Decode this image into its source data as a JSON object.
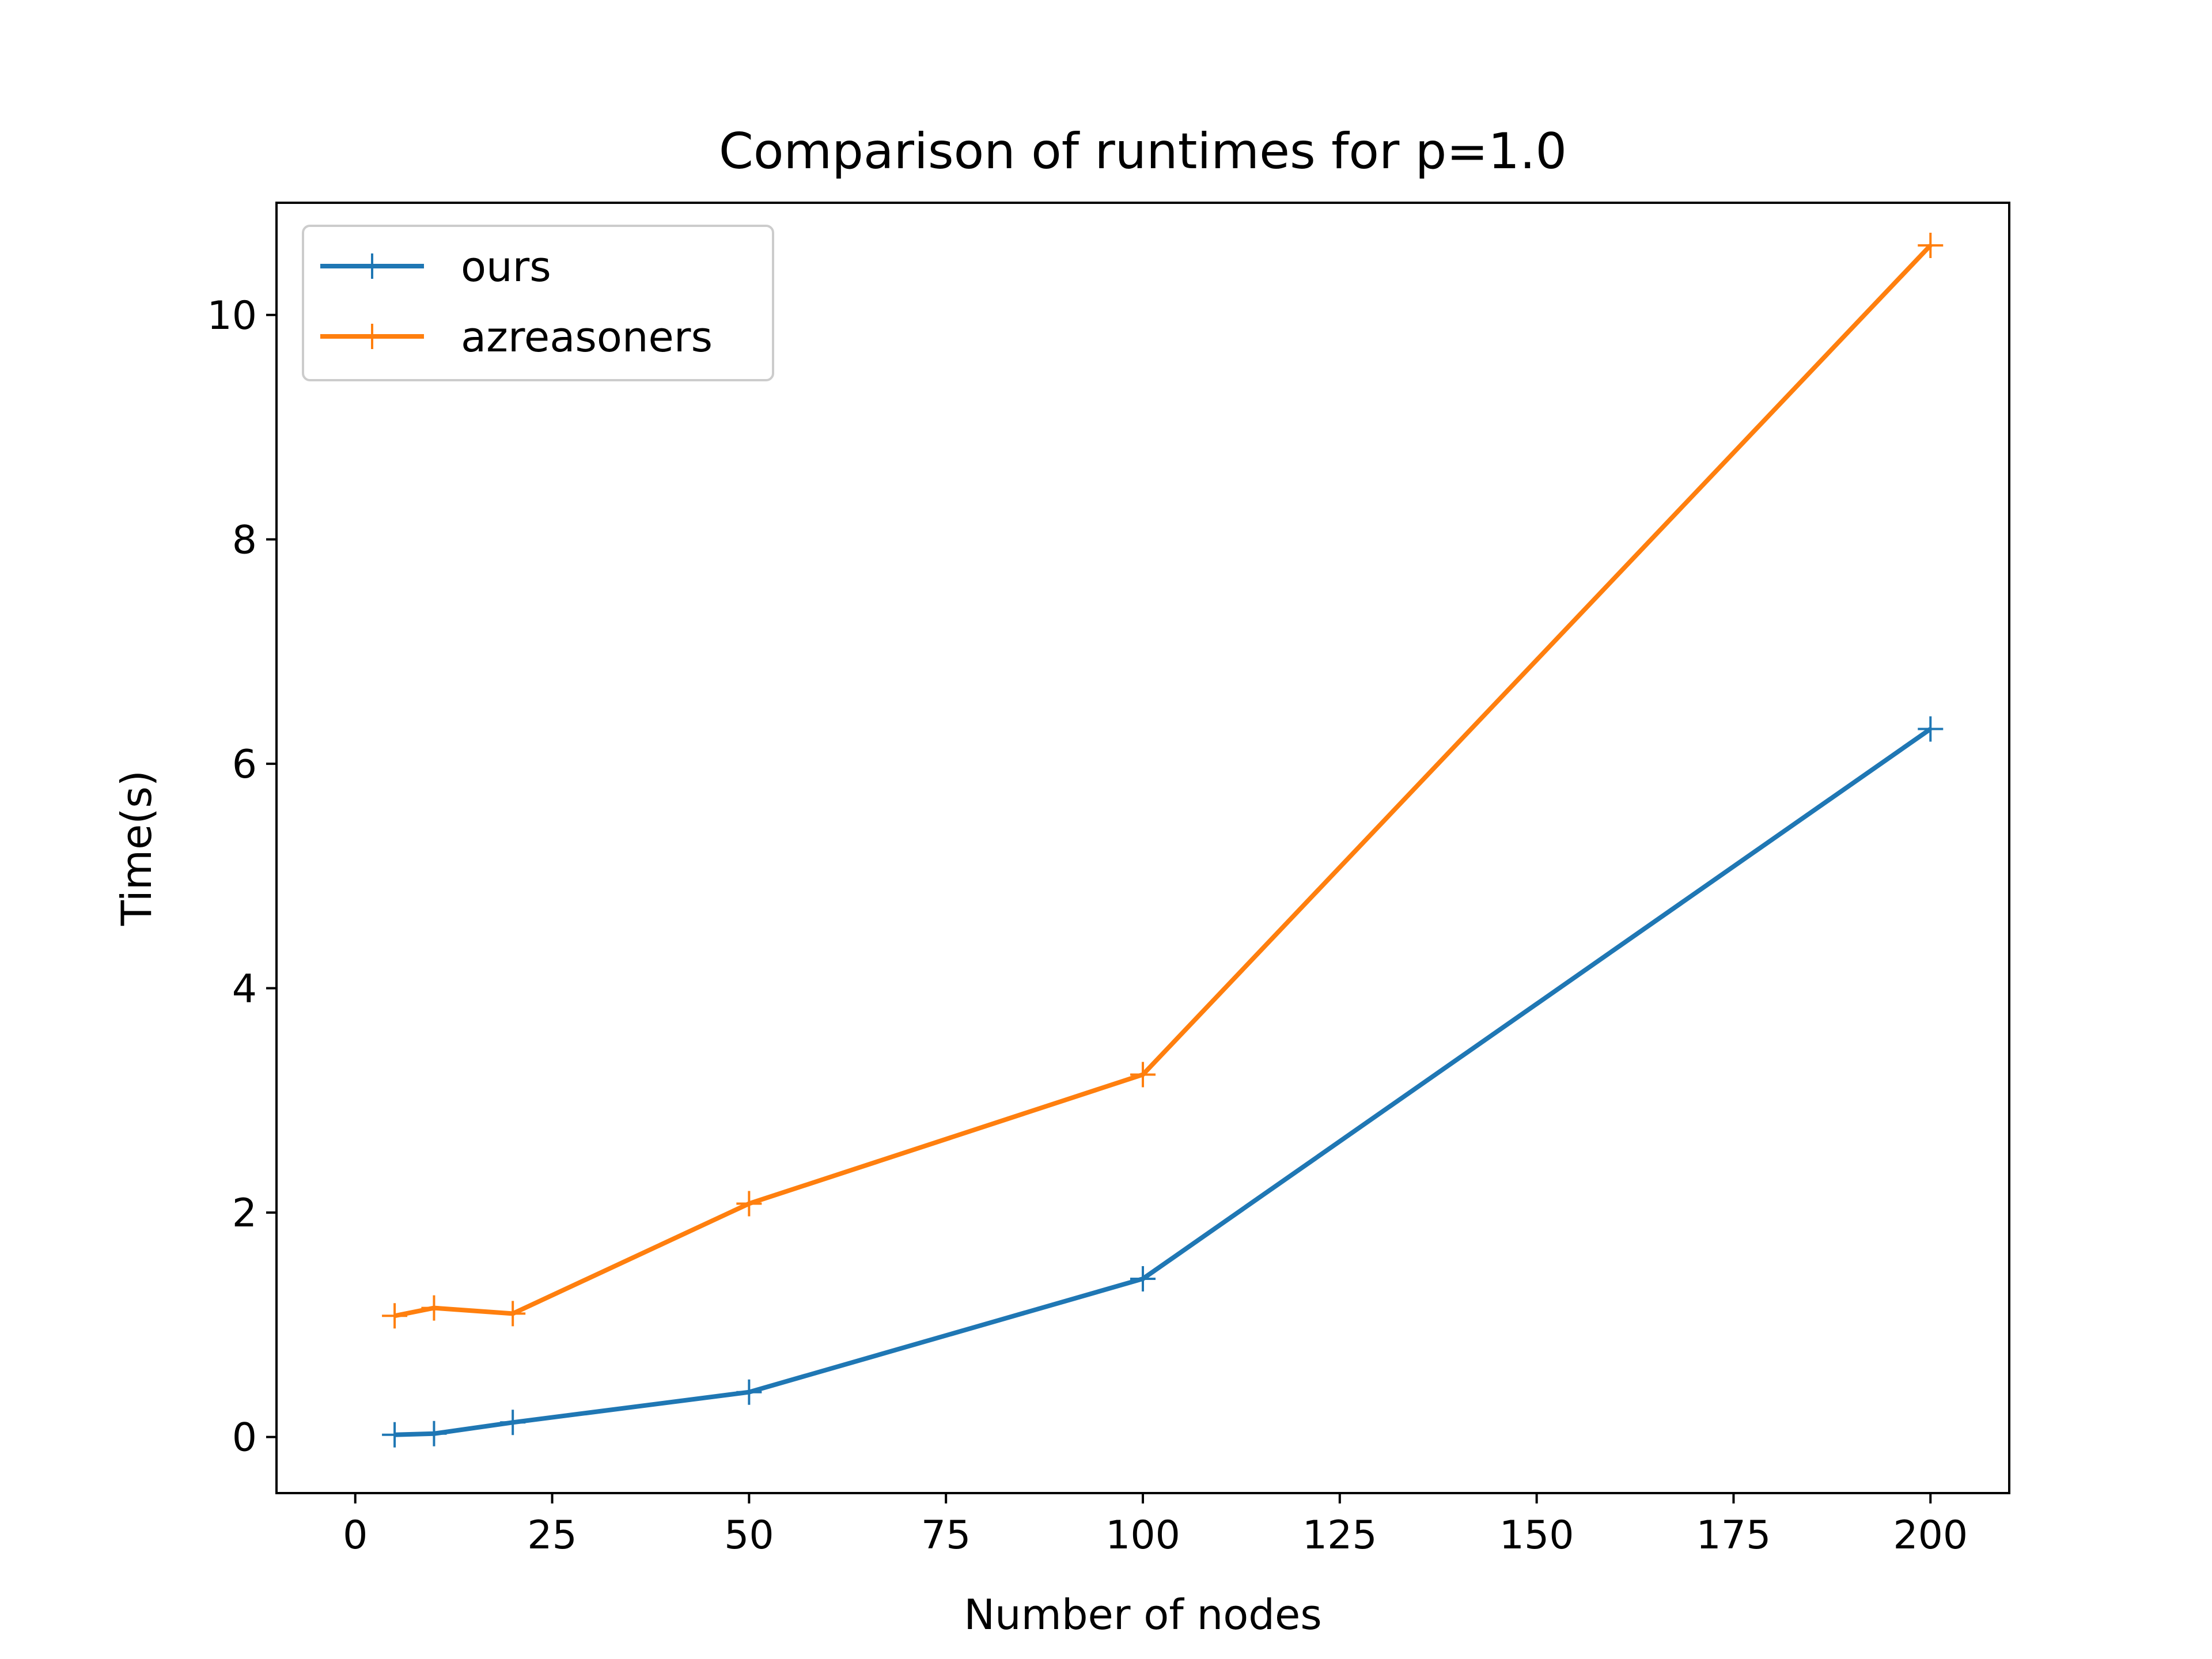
{
  "chart_data": {
    "type": "line",
    "title": "Comparison of runtimes for p=1.0",
    "xlabel": "Number of nodes",
    "ylabel": "Time(s)",
    "xlim": [
      -10,
      210
    ],
    "ylim": [
      -0.5,
      11.0
    ],
    "xticks": [
      0,
      25,
      50,
      75,
      100,
      125,
      150,
      175,
      200
    ],
    "yticks": [
      0,
      2,
      4,
      6,
      8,
      10
    ],
    "grid": false,
    "legend_position": "top-left",
    "series": [
      {
        "name": "ours",
        "color": "#1f77b4",
        "marker": "plus",
        "x": [
          5,
          10,
          20,
          50,
          100,
          200
        ],
        "y": [
          0.02,
          0.03,
          0.13,
          0.4,
          1.41,
          6.31
        ]
      },
      {
        "name": "azreasoners",
        "color": "#ff7f0e",
        "marker": "plus",
        "x": [
          5,
          10,
          20,
          50,
          100,
          200
        ],
        "y": [
          1.08,
          1.15,
          1.1,
          2.08,
          3.23,
          10.62
        ]
      }
    ]
  }
}
